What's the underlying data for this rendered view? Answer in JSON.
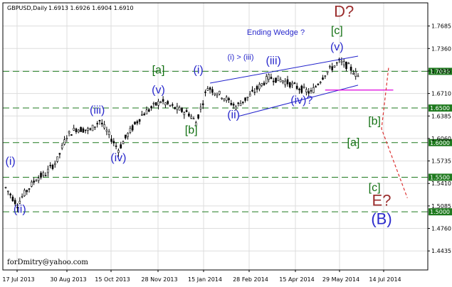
{
  "header": {
    "symbol": "GBPUSD,Daily",
    "ohlc": "1.6913 1.6926 1.6904 1.6910"
  },
  "watermark": "forDmitry@yahoo.com",
  "colors": {
    "candle": "#000000",
    "level_line": "#1f7a1f",
    "level_label_bg": "#1f7a1f",
    "channel": "#2222cc",
    "magenta": "#dd00dd",
    "red_path": "#dd3333",
    "blue": "#2a2acc",
    "green": "#137013",
    "dark_red": "#9b2d2d"
  },
  "chart_data": {
    "type": "candlestick",
    "title": "",
    "xlabel": "",
    "ylabel": "",
    "ylim": [
      1.416,
      1.802
    ],
    "x_tick_labels": [
      "17 Jul 2013",
      "30 Aug 2013",
      "15 Oct 2013",
      "28 Nov 2013",
      "15 Jan 2014",
      "28 Feb 2014",
      "15 Apr 2014",
      "29 May 2014",
      "14 Jul 2014"
    ],
    "y_ticks": [
      1.7685,
      1.736,
      1.7035,
      1.671,
      1.6385,
      1.606,
      1.5735,
      1.541,
      1.5085,
      1.476,
      1.4435
    ],
    "levels": [
      {
        "value": "1.7030",
        "label": "1.7030"
      },
      {
        "value": "1.6500",
        "label": "1.6500"
      },
      {
        "value": "1.6000",
        "label": "1.6000"
      },
      {
        "value": "1.5500",
        "label": "1.5500"
      },
      {
        "value": "1.5000",
        "label": "1.5000"
      }
    ],
    "grid": true,
    "wave_labels_blue": [
      {
        "text": "(i)",
        "bar": 2,
        "price": 1.568
      },
      {
        "text": "(ii)",
        "bar": 6,
        "price": 1.4985
      },
      {
        "text": "(iii)",
        "bar": 39,
        "price": 1.642
      },
      {
        "text": "(iv)",
        "bar": 48,
        "price": 1.573
      },
      {
        "text": "(v)",
        "bar": 65,
        "price": 1.671
      },
      {
        "text": "(i)",
        "bar": 82,
        "price": 1.7
      },
      {
        "text": "(ii)",
        "bar": 97,
        "price": 1.635
      },
      {
        "text": "(iii)",
        "bar": 114,
        "price": 1.713
      },
      {
        "text": "(iv)?",
        "bar": 126,
        "price": 1.656
      },
      {
        "text": "(v)",
        "bar": 141,
        "price": 1.733
      }
    ],
    "wave_labels_green": [
      {
        "text": "[a]",
        "bar": 65,
        "price": 1.7
      },
      {
        "text": "[b]",
        "bar": 79,
        "price": 1.613
      },
      {
        "text": "[c]",
        "bar": 141,
        "price": 1.757
      },
      {
        "text": "[b]",
        "bar": 157,
        "price": 1.626
      },
      {
        "text": "[a]",
        "bar": 148,
        "price": 1.595
      },
      {
        "text": "[c]",
        "bar": 157,
        "price": 1.53
      }
    ],
    "wave_labels_red": [
      {
        "text": "D?",
        "bar": 144,
        "price": 1.782
      },
      {
        "text": "E?",
        "bar": 160,
        "price": 1.509
      }
    ],
    "wave_label_big": {
      "text": "(B)",
      "bar": 160,
      "price": 1.482
    },
    "annotations": [
      {
        "text": "Ending Wedge ?",
        "bar": 115,
        "price": 1.756
      },
      {
        "text": "(i) > (iii)",
        "bar": 100,
        "price": 1.72
      }
    ]
  }
}
